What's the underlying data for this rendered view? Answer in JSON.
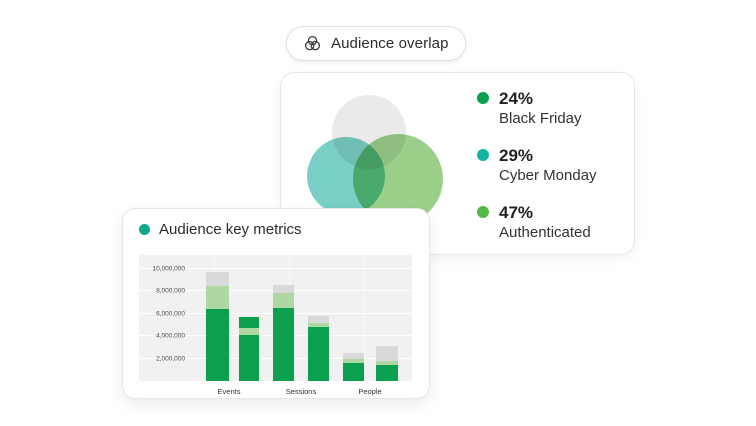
{
  "colors": {
    "green": "#0aa04f",
    "light_green": "#aed7a2",
    "gray": "#d9d9d9",
    "teal_dot": "#0ea98c",
    "venn_gray": "#e9e9e9",
    "venn_teal": "#63c8bc",
    "venn_green": "#90cb7e"
  },
  "overlap_chip": {
    "label": "Audience overlap"
  },
  "metrics_card": {
    "title": "Audience key metrics"
  },
  "chart_data": [
    {
      "type": "venn",
      "title": "Audience overlap",
      "legend_position": "right",
      "sets": [
        {
          "label": "Black Friday",
          "pct": "24%",
          "dot_color": "#0aa04f",
          "circle_color": "#e9e9e9"
        },
        {
          "label": "Cyber Monday",
          "pct": "29%",
          "dot_color": "#12b3a2",
          "circle_color": "#63c8bc"
        },
        {
          "label": "Authenticated",
          "pct": "47%",
          "dot_color": "#55b94a",
          "circle_color": "#90cb7e"
        }
      ]
    },
    {
      "type": "bar",
      "stacked": true,
      "title": "Audience key metrics",
      "xlabel": "",
      "ylabel": "",
      "grid": true,
      "categories": [
        "Events",
        "Sessions",
        "People"
      ],
      "y_tick_labels": [
        "2,000,000",
        "4,000,000",
        "6,000,000",
        "8,000,000",
        "10,000,000"
      ],
      "y_tick_values": [
        2000000,
        4000000,
        6000000,
        8000000,
        10000000
      ],
      "ylim": [
        0,
        11250000
      ],
      "bars": [
        {
          "category": "Events",
          "segments": [
            {
              "value": 6400000,
              "color": "green"
            },
            {
              "value": 2100000,
              "color": "light_green"
            },
            {
              "value": 1200000,
              "color": "gray"
            }
          ]
        },
        {
          "category": "Events",
          "segments": [
            {
              "value": 4100000,
              "color": "green"
            },
            {
              "value": 600000,
              "color": "light_green"
            },
            {
              "value": 1000000,
              "color": "green"
            }
          ]
        },
        {
          "category": "Sessions",
          "segments": [
            {
              "value": 6500000,
              "color": "green"
            },
            {
              "value": 1400000,
              "color": "light_green"
            },
            {
              "value": 700000,
              "color": "gray"
            }
          ]
        },
        {
          "category": "Sessions",
          "segments": [
            {
              "value": 4800000,
              "color": "green"
            },
            {
              "value": 400000,
              "color": "light_green"
            },
            {
              "value": 600000,
              "color": "gray"
            }
          ]
        },
        {
          "category": "People",
          "segments": [
            {
              "value": 1600000,
              "color": "green"
            },
            {
              "value": 400000,
              "color": "light_green"
            },
            {
              "value": 500000,
              "color": "gray"
            }
          ]
        },
        {
          "category": "People",
          "segments": [
            {
              "value": 1400000,
              "color": "green"
            },
            {
              "value": 400000,
              "color": "light_green"
            },
            {
              "value": 1300000,
              "color": "gray"
            }
          ]
        }
      ]
    }
  ]
}
